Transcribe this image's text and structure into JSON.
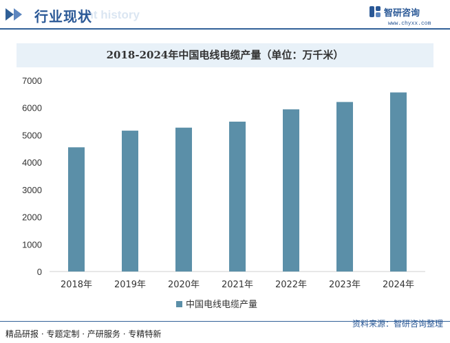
{
  "header": {
    "title": "行业现状",
    "ghost_text": "ent history"
  },
  "brand": {
    "name": "智研咨询",
    "url": "www.chyxx.com",
    "logo_icon": "zhiyan-logo-icon"
  },
  "footer": {
    "left": "精品研报 · 专题定制 · 产研服务 · 专精特新",
    "right": "资料来源：智研咨询整理"
  },
  "colors": {
    "bar": "#5b8fa8",
    "brand": "#2a5896",
    "title_band": "#e8f1f8"
  },
  "chart_data": {
    "type": "bar",
    "title": "2018-2024年中国电线电缆产量（单位：万千米）",
    "categories": [
      "2018年",
      "2019年",
      "2020年",
      "2021年",
      "2022年",
      "2023年",
      "2024年"
    ],
    "series": [
      {
        "name": "中国电线电缆产量",
        "values": [
          4550,
          5160,
          5270,
          5490,
          5940,
          6210,
          6560
        ]
      }
    ],
    "ylim": [
      0,
      7000
    ],
    "yticks": [
      "0",
      "1000",
      "2000",
      "3000",
      "4000",
      "5000",
      "6000",
      "7000"
    ],
    "grid": false,
    "legend": "bottom-center"
  }
}
